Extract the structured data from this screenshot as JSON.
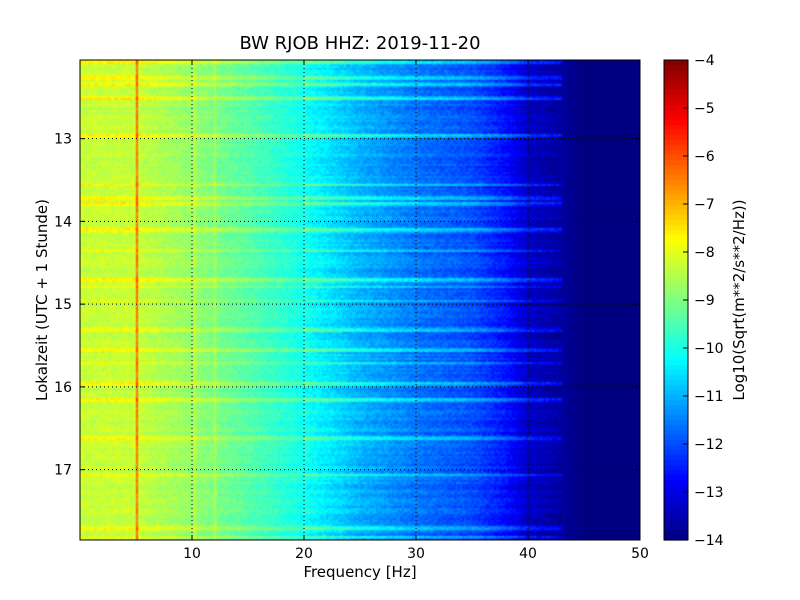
{
  "chart_data": {
    "type": "heatmap",
    "title": "BW RJOB HHZ: 2019-11-20",
    "xlabel": "Frequency [Hz]",
    "ylabel": "Lokalzeit (UTC + 1 Stunde)",
    "xlim": [
      0,
      50
    ],
    "ylim": [
      17.85,
      12.05
    ],
    "y_inverted": true,
    "grid": true,
    "x_ticks": [
      {
        "value": 10,
        "label": "10"
      },
      {
        "value": 20,
        "label": "20"
      },
      {
        "value": 30,
        "label": "30"
      },
      {
        "value": 40,
        "label": "40"
      },
      {
        "value": 50,
        "label": "50"
      }
    ],
    "y_ticks": [
      {
        "value": 13,
        "label": "13"
      },
      {
        "value": 14,
        "label": "14"
      },
      {
        "value": 15,
        "label": "15"
      },
      {
        "value": 16,
        "label": "16"
      },
      {
        "value": 17,
        "label": "17"
      }
    ],
    "colorbar": {
      "label": "Log10(Sqrt(m**2/s**2/Hz))",
      "colormap": "jet",
      "range": [
        -14,
        -4
      ],
      "ticks": [
        {
          "value": -4,
          "label": "−4"
        },
        {
          "value": -5,
          "label": "−5"
        },
        {
          "value": -6,
          "label": "−6"
        },
        {
          "value": -7,
          "label": "−7"
        },
        {
          "value": -8,
          "label": "−8"
        },
        {
          "value": -9,
          "label": "−9"
        },
        {
          "value": -10,
          "label": "−10"
        },
        {
          "value": -11,
          "label": "−11"
        },
        {
          "value": -12,
          "label": "−12"
        },
        {
          "value": -13,
          "label": "−13"
        },
        {
          "value": -14,
          "label": "−14"
        }
      ]
    },
    "spectral_profile": [
      {
        "frequency": 0,
        "value": -8.3
      },
      {
        "frequency": 5,
        "value": -8.3
      },
      {
        "frequency": 10,
        "value": -8.8
      },
      {
        "frequency": 15,
        "value": -9.4
      },
      {
        "frequency": 20,
        "value": -10.1
      },
      {
        "frequency": 25,
        "value": -11.0
      },
      {
        "frequency": 30,
        "value": -11.6
      },
      {
        "frequency": 35,
        "value": -12.0
      },
      {
        "frequency": 38,
        "value": -12.6
      },
      {
        "frequency": 40,
        "value": -13.3
      },
      {
        "frequency": 43,
        "value": -13.7
      },
      {
        "frequency": 45,
        "value": -14.0
      },
      {
        "frequency": 50,
        "value": -14.0
      }
    ],
    "noise_bands_hours": [
      12.07,
      12.25,
      12.33,
      12.5,
      12.95,
      13.55,
      13.7,
      13.78,
      14.1,
      14.35,
      14.7,
      14.78,
      14.95,
      15.3,
      15.55,
      15.7,
      15.95,
      16.15,
      16.6,
      17.05,
      17.7,
      17.8
    ],
    "tonal_lines_hz": [
      5.1,
      10.3,
      12.0
    ]
  }
}
